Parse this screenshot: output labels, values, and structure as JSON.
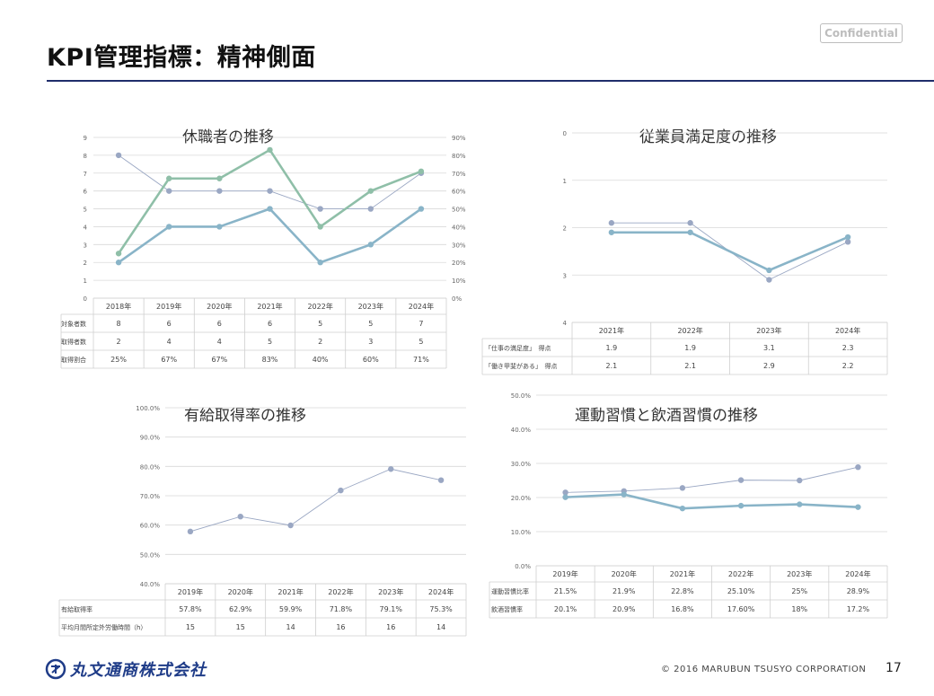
{
  "header": {
    "title": "KPI管理指標：精神側面",
    "confidential": "Confidential"
  },
  "footer": {
    "company": "丸文通商株式会社",
    "copyright": "© 2016 MARUBUN TSUSYO CORPORATION",
    "page": "17"
  },
  "colors": {
    "thin": "#9aa7c3",
    "thick_green": "#8fbfa8",
    "thick_blue": "#89b4c8",
    "grid": "#d9d9d9",
    "rule": "#1f2d6b"
  },
  "chart_data": [
    {
      "type": "line",
      "title": "休職者の推移",
      "categories": [
        "2018年",
        "2019年",
        "2020年",
        "2021年",
        "2022年",
        "2023年",
        "2024年"
      ],
      "ylim": [
        0,
        9
      ],
      "y2lim": [
        0,
        90
      ],
      "y_ticks": [
        "0",
        "1",
        "2",
        "3",
        "4",
        "5",
        "6",
        "7",
        "8",
        "9"
      ],
      "y2_ticks": [
        "0%",
        "10%",
        "20%",
        "30%",
        "40%",
        "50%",
        "60%",
        "70%",
        "80%",
        "90%"
      ],
      "series": [
        {
          "name": "対象者数",
          "values": [
            8,
            6,
            6,
            6,
            5,
            5,
            7
          ],
          "axis": "left",
          "style": "thin"
        },
        {
          "name": "取得者数",
          "values": [
            2,
            4,
            4,
            5,
            2,
            3,
            5
          ],
          "axis": "left",
          "style": "thick_blue"
        },
        {
          "name": "取得割合",
          "values": [
            25,
            67,
            67,
            83,
            40,
            60,
            71
          ],
          "axis": "right",
          "style": "thick_green"
        }
      ],
      "table": [
        {
          "label": "対象者数",
          "cells": [
            "8",
            "6",
            "6",
            "6",
            "5",
            "5",
            "7"
          ]
        },
        {
          "label": "取得者数",
          "cells": [
            "2",
            "4",
            "4",
            "5",
            "2",
            "3",
            "5"
          ]
        },
        {
          "label": "取得割合",
          "cells": [
            "25%",
            "67%",
            "67%",
            "83%",
            "40%",
            "60%",
            "71%"
          ]
        }
      ]
    },
    {
      "type": "line",
      "title": "従業員満足度の推移",
      "categories": [
        "2021年",
        "2022年",
        "2023年",
        "2024年"
      ],
      "ylim": [
        0,
        4
      ],
      "y_reversed": true,
      "y_ticks": [
        "0",
        "1",
        "2",
        "3",
        "4"
      ],
      "series": [
        {
          "name": "「仕事の満足度」　得点",
          "values": [
            1.9,
            1.9,
            3.1,
            2.3
          ],
          "style": "thin"
        },
        {
          "name": "「働き甲斐がある」　得点",
          "values": [
            2.1,
            2.1,
            2.9,
            2.2
          ],
          "style": "thick_blue"
        }
      ],
      "table": [
        {
          "label": "「仕事の満足度」　得点",
          "cells": [
            "1.9",
            "1.9",
            "3.1",
            "2.3"
          ]
        },
        {
          "label": "「働き甲斐がある」　得点",
          "cells": [
            "2.1",
            "2.1",
            "2.9",
            "2.2"
          ]
        }
      ]
    },
    {
      "type": "line",
      "title": "有給取得率の推移",
      "categories": [
        "2019年",
        "2020年",
        "2021年",
        "2022年",
        "2023年",
        "2024年"
      ],
      "ylim": [
        40,
        100
      ],
      "y_ticks": [
        "40.0%",
        "50.0%",
        "60.0%",
        "70.0%",
        "80.0%",
        "90.0%",
        "100.0%"
      ],
      "series": [
        {
          "name": "有給取得率",
          "values": [
            57.8,
            62.9,
            59.9,
            71.8,
            79.1,
            75.3
          ],
          "style": "thin"
        }
      ],
      "table": [
        {
          "label": "有給取得率",
          "cells": [
            "57.8%",
            "62.9%",
            "59.9%",
            "71.8%",
            "79.1%",
            "75.3%"
          ]
        },
        {
          "label": "平均月間所定外労働時間（h）",
          "cells": [
            "15",
            "15",
            "14",
            "16",
            "16",
            "14"
          ]
        }
      ]
    },
    {
      "type": "line",
      "title": "運動習慣と飲酒習慣の推移",
      "categories": [
        "2019年",
        "2020年",
        "2021年",
        "2022年",
        "2023年",
        "2024年"
      ],
      "ylim": [
        0,
        50
      ],
      "y_ticks": [
        "0.0%",
        "10.0%",
        "20.0%",
        "30.0%",
        "40.0%",
        "50.0%"
      ],
      "series": [
        {
          "name": "運動習慣比率",
          "values": [
            21.5,
            21.9,
            22.8,
            25.1,
            25,
            28.9
          ],
          "style": "thin"
        },
        {
          "name": "飲酒習慣率",
          "values": [
            20.1,
            20.9,
            16.8,
            17.6,
            18,
            17.2
          ],
          "style": "thick_blue"
        }
      ],
      "table": [
        {
          "label": "運動習慣比率",
          "cells": [
            "21.5%",
            "21.9%",
            "22.8%",
            "25.10%",
            "25%",
            "28.9%"
          ]
        },
        {
          "label": "飲酒習慣率",
          "cells": [
            "20.1%",
            "20.9%",
            "16.8%",
            "17.60%",
            "18%",
            "17.2%"
          ]
        }
      ]
    }
  ]
}
